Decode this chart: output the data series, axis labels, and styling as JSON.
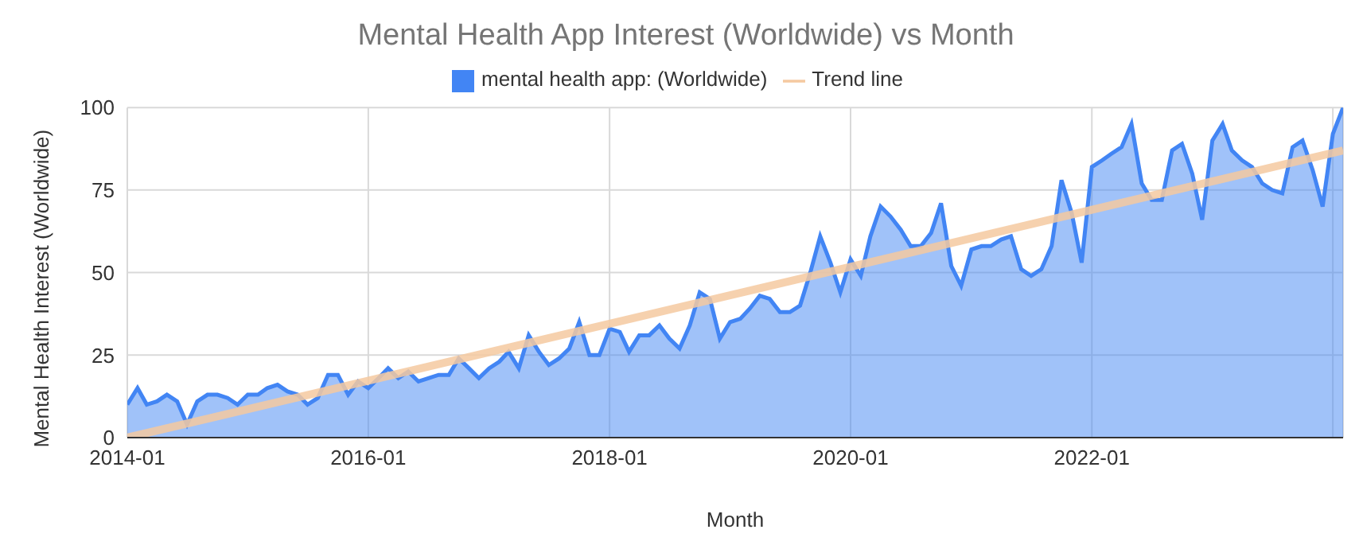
{
  "chart_data": {
    "type": "area",
    "title": "Mental Health App Interest (Worldwide) vs Month",
    "xlabel": "Month",
    "ylabel": "Mental Health Interest (Worldwide)",
    "x": [
      "2014-01",
      "2014-02",
      "2014-03",
      "2014-04",
      "2014-05",
      "2014-06",
      "2014-07",
      "2014-08",
      "2014-09",
      "2014-10",
      "2014-11",
      "2014-12",
      "2015-01",
      "2015-02",
      "2015-03",
      "2015-04",
      "2015-05",
      "2015-06",
      "2015-07",
      "2015-08",
      "2015-09",
      "2015-10",
      "2015-11",
      "2015-12",
      "2016-01",
      "2016-02",
      "2016-03",
      "2016-04",
      "2016-05",
      "2016-06",
      "2016-07",
      "2016-08",
      "2016-09",
      "2016-10",
      "2016-11",
      "2016-12",
      "2017-01",
      "2017-02",
      "2017-03",
      "2017-04",
      "2017-05",
      "2017-06",
      "2017-07",
      "2017-08",
      "2017-09",
      "2017-10",
      "2017-11",
      "2017-12",
      "2018-01",
      "2018-02",
      "2018-03",
      "2018-04",
      "2018-05",
      "2018-06",
      "2018-07",
      "2018-08",
      "2018-09",
      "2018-10",
      "2018-11",
      "2018-12",
      "2019-01",
      "2019-02",
      "2019-03",
      "2019-04",
      "2019-05",
      "2019-06",
      "2019-07",
      "2019-08",
      "2019-09",
      "2019-10",
      "2019-11",
      "2019-12",
      "2020-01",
      "2020-02",
      "2020-03",
      "2020-04",
      "2020-05",
      "2020-06",
      "2020-07",
      "2020-08",
      "2020-09",
      "2020-10",
      "2020-11",
      "2020-12",
      "2021-01",
      "2021-02",
      "2021-03",
      "2021-04",
      "2021-05",
      "2021-06",
      "2021-07",
      "2021-08",
      "2021-09",
      "2021-10",
      "2021-11",
      "2021-12",
      "2022-01",
      "2022-02",
      "2022-03",
      "2022-04",
      "2022-05",
      "2022-06",
      "2022-07",
      "2022-08",
      "2022-09",
      "2022-10",
      "2022-11",
      "2022-12",
      "2023-01",
      "2023-02",
      "2023-03",
      "2023-04",
      "2023-05",
      "2023-06",
      "2023-07",
      "2023-08",
      "2023-09",
      "2023-10",
      "2023-11",
      "2023-12",
      "2024-01",
      "2024-02"
    ],
    "series": [
      {
        "name": "mental health app: (Worldwide)",
        "color": "#4285f4",
        "values": [
          10,
          15,
          10,
          11,
          13,
          11,
          4,
          11,
          13,
          13,
          12,
          10,
          13,
          13,
          15,
          16,
          14,
          13,
          10,
          12,
          19,
          19,
          13,
          17,
          15,
          18,
          21,
          18,
          20,
          17,
          18,
          19,
          19,
          24,
          21,
          18,
          21,
          23,
          26,
          21,
          31,
          26,
          22,
          24,
          27,
          35,
          25,
          25,
          33,
          32,
          26,
          31,
          31,
          34,
          30,
          27,
          34,
          44,
          42,
          30,
          35,
          36,
          39,
          43,
          42,
          38,
          38,
          40,
          50,
          61,
          53,
          44,
          54,
          49,
          61,
          70,
          67,
          63,
          58,
          58,
          62,
          71,
          52,
          46,
          57,
          58,
          58,
          60,
          61,
          51,
          49,
          51,
          58,
          78,
          68,
          53,
          82,
          84,
          86,
          88,
          95,
          77,
          72,
          72,
          87,
          89,
          80,
          66,
          90,
          95,
          87,
          84,
          82,
          77,
          75,
          74,
          88,
          90,
          81,
          70,
          92,
          100
        ]
      },
      {
        "name": "Trend line",
        "type": "line",
        "color": "#f5c9a0",
        "x": [
          "2014-01",
          "2024-02"
        ],
        "values": [
          0,
          87
        ]
      }
    ],
    "xlim": [
      "2014-01",
      "2024-02"
    ],
    "xticks": [
      "2014-01",
      "2016-01",
      "2018-01",
      "2020-01",
      "2022-01",
      {
        "value": "2024-01",
        "label": null
      }
    ],
    "ylim": [
      0,
      100
    ],
    "yticks": [
      0,
      25,
      50,
      75,
      100
    ],
    "grid": true,
    "legend": "top"
  }
}
